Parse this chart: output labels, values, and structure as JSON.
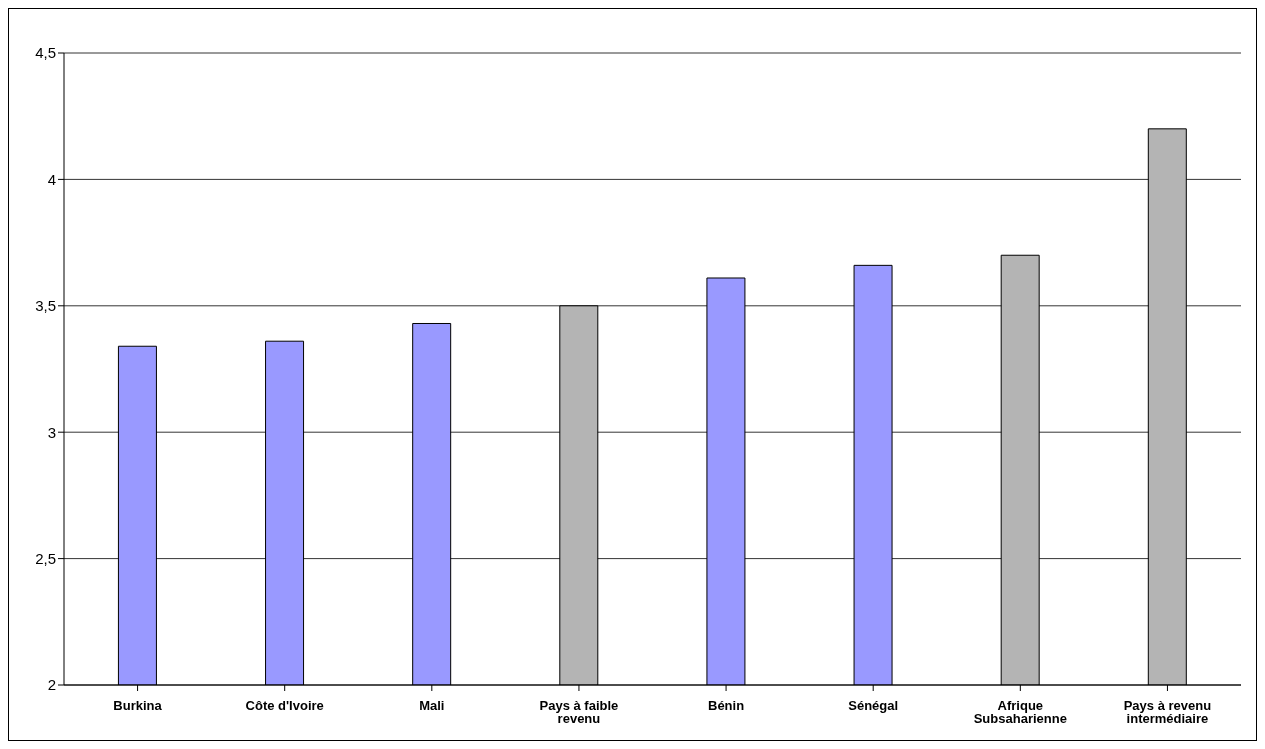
{
  "chart_data": {
    "type": "bar",
    "categories": [
      "Burkina",
      "Côte d'Ivoire",
      "Mali",
      "Pays à faible revenu",
      "Bénin",
      "Sénégal",
      "Afrique Subsaharienne",
      "Pays à revenu intermédiaire"
    ],
    "values": [
      3.34,
      3.36,
      3.43,
      3.5,
      3.61,
      3.66,
      3.7,
      4.2
    ],
    "colors": [
      "#9999ff",
      "#9999ff",
      "#9999ff",
      "#b4b4b4",
      "#9999ff",
      "#9999ff",
      "#b4b4b4",
      "#b4b4b4"
    ],
    "ylim": [
      2,
      4.5
    ],
    "yticks": [
      2,
      {
        "value": 2.5,
        "label": "2,5"
      },
      3,
      {
        "value": 3.5,
        "label": "3,5"
      },
      4,
      {
        "value": 4.5,
        "label": "4,5"
      }
    ],
    "grid": "y",
    "legend": false
  }
}
